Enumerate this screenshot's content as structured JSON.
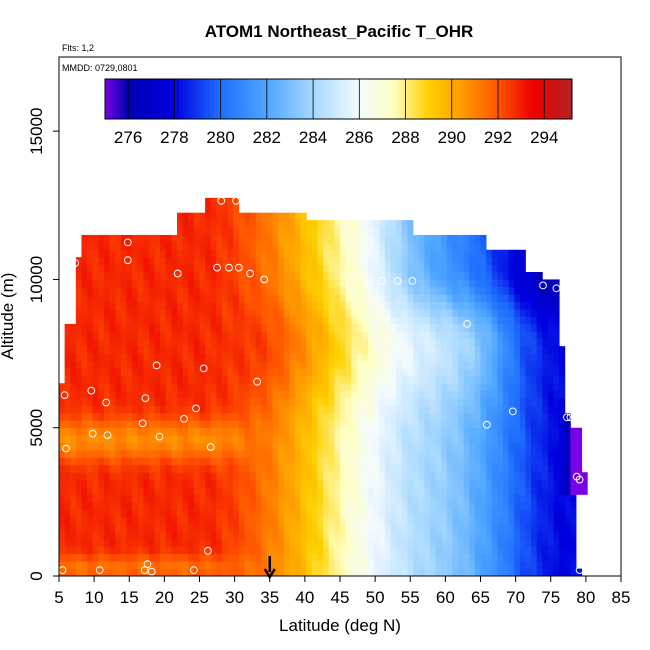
{
  "chart_data": {
    "type": "heatmap",
    "title": "ATOM1 Northeast_Pacific T_OHR",
    "flights_note": "Flts: 1,2",
    "date_note": "MMDD: 0729,0801",
    "xlabel": "Latitude (deg N)",
    "ylabel": "Altitude (m)",
    "xlim": [
      5,
      85
    ],
    "ylim": [
      0,
      17500
    ],
    "x_ticks": [
      5,
      10,
      15,
      20,
      25,
      30,
      35,
      40,
      45,
      50,
      55,
      60,
      65,
      70,
      75,
      80,
      85
    ],
    "y_ticks": [
      0,
      5000,
      10000,
      15000
    ],
    "colorbar": {
      "min": 275,
      "max": 295.2,
      "tick_values": [
        276,
        278,
        280,
        282,
        284,
        286,
        288,
        290,
        292,
        294
      ],
      "colors": [
        "#7a00e6",
        "#0000b0",
        "#0000e0",
        "#1e6fff",
        "#4fa6ff",
        "#a6d8ff",
        "#f4fbff",
        "#ffffc0",
        "#ffd000",
        "#ff9900",
        "#ff5500",
        "#ee0000",
        "#b22222"
      ],
      "color_stops": [
        275,
        276,
        278,
        280,
        282,
        284,
        286,
        287.5,
        289,
        290.5,
        292,
        293.5,
        295.2
      ]
    },
    "grid": false,
    "marker": {
      "latitude": 35,
      "symbol": "arrow"
    },
    "profile_points": [
      [
        5.5,
        200
      ],
      [
        10.8,
        200
      ],
      [
        17.2,
        200
      ],
      [
        18.2,
        150
      ],
      [
        24.2,
        200
      ],
      [
        26.2,
        850
      ],
      [
        17.6,
        400
      ],
      [
        6,
        4300
      ],
      [
        9.8,
        4800
      ],
      [
        11.9,
        4750
      ],
      [
        19.3,
        4700
      ],
      [
        26.6,
        4350
      ],
      [
        16.9,
        5150
      ],
      [
        22.8,
        5300
      ],
      [
        5.8,
        6100
      ],
      [
        9.6,
        6250
      ],
      [
        11.7,
        5850
      ],
      [
        17.3,
        6000
      ],
      [
        24.5,
        5650
      ],
      [
        25.6,
        7000
      ],
      [
        18.9,
        7100
      ],
      [
        7.3,
        10550
      ],
      [
        7.5,
        11200
      ],
      [
        14.8,
        10650
      ],
      [
        14.8,
        11250
      ],
      [
        21.9,
        10200
      ],
      [
        27.5,
        10400
      ],
      [
        29.2,
        10400
      ],
      [
        30.6,
        10400
      ],
      [
        21.2,
        11950
      ],
      [
        28.1,
        12650
      ],
      [
        30.2,
        12650
      ],
      [
        32.2,
        10200
      ],
      [
        34.2,
        10000
      ],
      [
        47,
        10000
      ],
      [
        49,
        10000
      ],
      [
        51,
        9950
      ],
      [
        53.2,
        9950
      ],
      [
        55.3,
        9950
      ],
      [
        63.1,
        8500
      ],
      [
        67.5,
        11300
      ],
      [
        73.9,
        9800
      ],
      [
        75.8,
        9700
      ],
      [
        65.9,
        5100
      ],
      [
        69.6,
        5550
      ],
      [
        77.3,
        5350
      ],
      [
        77.8,
        5350
      ],
      [
        78.7,
        3350
      ],
      [
        79.1,
        3250
      ],
      [
        79.1,
        200
      ],
      [
        33.2,
        6550
      ]
    ]
  }
}
